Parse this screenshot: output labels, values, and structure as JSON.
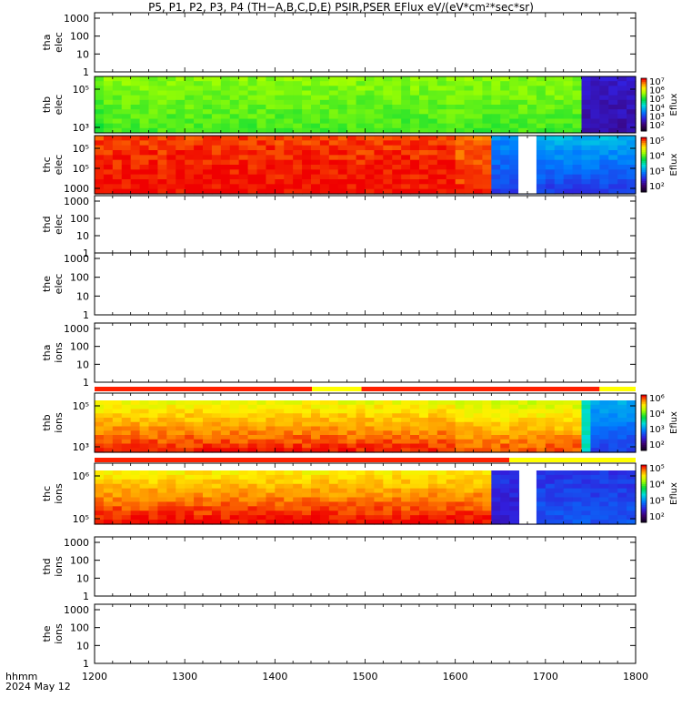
{
  "chart_data": {
    "type": "heatmap",
    "title": "P5, P1, P2, P3, P4 (TH−A,B,C,D,E) PSIR,PSER EFlux eV/(eV*cm²*sec*sr)",
    "x_label_line1": "hhmm",
    "x_label_line2": "2024 May 12",
    "xlim": [
      1200,
      1800
    ],
    "x_ticks": [
      "1200",
      "1300",
      "1400",
      "1500",
      "1600",
      "1700",
      "1800"
    ],
    "colorbar_label": "Eflux",
    "panels": [
      {
        "probe": "tha",
        "species": "elec",
        "has_data": false,
        "y_ticks": [
          "1000",
          "100",
          "10",
          "1"
        ]
      },
      {
        "probe": "thb",
        "species": "elec",
        "has_data": true,
        "y_ticks": [
          "10⁵",
          "10³"
        ],
        "colorbar_ticks": [
          "10⁷",
          "10⁶",
          "10⁵",
          "10⁴",
          "10³",
          "10²"
        ],
        "color_levels_log": [
          [
            3.2,
            3.3,
            3.6
          ],
          [
            4.0,
            2.0,
            2.2
          ]
        ],
        "segment_ends_time": [
          1740,
          1745,
          1800
        ]
      },
      {
        "probe": "thc",
        "species": "elec",
        "has_data": true,
        "y_ticks": [
          "10⁵",
          "10⁵",
          "1000"
        ],
        "colorbar_ticks": [
          "10⁵",
          "10⁴",
          "10³",
          "10²"
        ],
        "data_gap_time": [
          1670,
          1690
        ],
        "transition_time": 1637
      },
      {
        "probe": "thd",
        "species": "elec",
        "has_data": false,
        "y_ticks": [
          "1000",
          "100",
          "10",
          "1"
        ]
      },
      {
        "probe": "the",
        "species": "elec",
        "has_data": false,
        "y_ticks": [
          "1000",
          "100",
          "10",
          "1"
        ]
      },
      {
        "probe": "tha",
        "species": "ions",
        "has_data": false,
        "y_ticks": [
          "1000",
          "100",
          "10",
          "1"
        ]
      },
      {
        "probe": "thb",
        "species": "ions",
        "has_data": true,
        "y_ticks": [
          "10⁵",
          "10³"
        ],
        "colorbar_ticks": [
          "10⁶",
          "10⁴",
          "10³",
          "10²"
        ],
        "transition_time": 1740
      },
      {
        "probe": "thc",
        "species": "ions",
        "has_data": true,
        "y_ticks": [
          "10⁶",
          "10⁵"
        ],
        "colorbar_ticks": [
          "10⁵",
          "10⁴",
          "10³",
          "10²"
        ],
        "data_gap_time": [
          1671,
          1690
        ],
        "transition_time": 1637
      },
      {
        "probe": "thd",
        "species": "ions",
        "has_data": false,
        "y_ticks": [
          "1000",
          "100",
          "10",
          "1"
        ]
      },
      {
        "probe": "the",
        "species": "ions",
        "has_data": false,
        "y_ticks": [
          "1000",
          "100",
          "10",
          "1"
        ]
      }
    ],
    "mode_bars": [
      {
        "above": "thb ions",
        "segments": [
          {
            "from": 1200,
            "to": 1441,
            "color": "#ff2000"
          },
          {
            "from": 1441,
            "to": 1496,
            "color": "#ffff00"
          },
          {
            "from": 1496,
            "to": 1760,
            "color": "#ff2000"
          },
          {
            "from": 1760,
            "to": 1800,
            "color": "#ffff00"
          }
        ]
      },
      {
        "above": "thc ions",
        "segments": [
          {
            "from": 1200,
            "to": 1660,
            "color": "#ff2000"
          },
          {
            "from": 1660,
            "to": 1800,
            "color": "#ffff00"
          }
        ]
      }
    ]
  }
}
